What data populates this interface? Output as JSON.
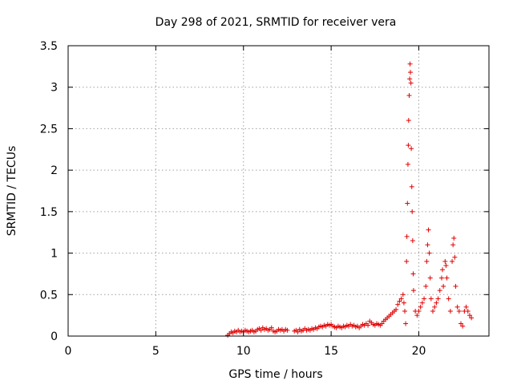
{
  "chart_data": {
    "type": "scatter",
    "title": "Day 298 of 2021, SRMTID for receiver vera",
    "xlabel": "GPS time / hours",
    "ylabel": "SRMTID / TECUs",
    "xlim": [
      0,
      24
    ],
    "ylim": [
      0,
      3.5
    ],
    "xticks": [
      "0",
      "5",
      "10",
      "15",
      "20"
    ],
    "yticks": [
      "0",
      "0.5",
      "1",
      "1.5",
      "2",
      "2.5",
      "3",
      "3.5"
    ],
    "grid": true,
    "marker": "plus",
    "series": [
      {
        "name": "SRMTID",
        "color": "#e00000",
        "points": [
          [
            9.1,
            0.01
          ],
          [
            9.2,
            0.03
          ],
          [
            9.3,
            0.05
          ],
          [
            9.4,
            0.04
          ],
          [
            9.5,
            0.06
          ],
          [
            9.6,
            0.05
          ],
          [
            9.7,
            0.07
          ],
          [
            9.8,
            0.05
          ],
          [
            9.9,
            0.06
          ],
          [
            10.0,
            0.05
          ],
          [
            10.1,
            0.07
          ],
          [
            10.2,
            0.06
          ],
          [
            10.3,
            0.05
          ],
          [
            10.4,
            0.06
          ],
          [
            10.5,
            0.07
          ],
          [
            10.6,
            0.05
          ],
          [
            10.7,
            0.06
          ],
          [
            10.8,
            0.08
          ],
          [
            10.9,
            0.09
          ],
          [
            11.0,
            0.07
          ],
          [
            11.1,
            0.1
          ],
          [
            11.2,
            0.08
          ],
          [
            11.3,
            0.09
          ],
          [
            11.4,
            0.07
          ],
          [
            11.5,
            0.08
          ],
          [
            11.6,
            0.1
          ],
          [
            11.7,
            0.06
          ],
          [
            11.8,
            0.05
          ],
          [
            11.9,
            0.06
          ],
          [
            12.0,
            0.08
          ],
          [
            12.1,
            0.07
          ],
          [
            12.2,
            0.08
          ],
          [
            12.3,
            0.06
          ],
          [
            12.4,
            0.08
          ],
          [
            12.5,
            0.07
          ],
          [
            12.9,
            0.06
          ],
          [
            13.0,
            0.07
          ],
          [
            13.1,
            0.05
          ],
          [
            13.2,
            0.08
          ],
          [
            13.3,
            0.06
          ],
          [
            13.4,
            0.07
          ],
          [
            13.5,
            0.09
          ],
          [
            13.6,
            0.07
          ],
          [
            13.7,
            0.08
          ],
          [
            13.8,
            0.07
          ],
          [
            13.9,
            0.09
          ],
          [
            14.0,
            0.08
          ],
          [
            14.1,
            0.1
          ],
          [
            14.2,
            0.09
          ],
          [
            14.3,
            0.11
          ],
          [
            14.4,
            0.12
          ],
          [
            14.5,
            0.11
          ],
          [
            14.6,
            0.13
          ],
          [
            14.7,
            0.12
          ],
          [
            14.8,
            0.14
          ],
          [
            14.9,
            0.13
          ],
          [
            15.0,
            0.14
          ],
          [
            15.1,
            0.12
          ],
          [
            15.2,
            0.11
          ],
          [
            15.3,
            0.1
          ],
          [
            15.4,
            0.12
          ],
          [
            15.5,
            0.11
          ],
          [
            15.6,
            0.1
          ],
          [
            15.7,
            0.12
          ],
          [
            15.8,
            0.11
          ],
          [
            15.9,
            0.13
          ],
          [
            16.0,
            0.12
          ],
          [
            16.1,
            0.14
          ],
          [
            16.2,
            0.12
          ],
          [
            16.3,
            0.13
          ],
          [
            16.4,
            0.11
          ],
          [
            16.5,
            0.12
          ],
          [
            16.6,
            0.1
          ],
          [
            16.7,
            0.12
          ],
          [
            16.8,
            0.14
          ],
          [
            16.9,
            0.13
          ],
          [
            17.0,
            0.15
          ],
          [
            17.1,
            0.13
          ],
          [
            17.2,
            0.18
          ],
          [
            17.3,
            0.16
          ],
          [
            17.4,
            0.14
          ],
          [
            17.5,
            0.13
          ],
          [
            17.6,
            0.15
          ],
          [
            17.7,
            0.14
          ],
          [
            17.8,
            0.13
          ],
          [
            17.9,
            0.15
          ],
          [
            18.0,
            0.18
          ],
          [
            18.1,
            0.2
          ],
          [
            18.2,
            0.22
          ],
          [
            18.3,
            0.24
          ],
          [
            18.4,
            0.26
          ],
          [
            18.5,
            0.28
          ],
          [
            18.6,
            0.3
          ],
          [
            18.7,
            0.32
          ],
          [
            18.8,
            0.38
          ],
          [
            18.9,
            0.42
          ],
          [
            19.0,
            0.45
          ],
          [
            19.1,
            0.5
          ],
          [
            19.15,
            0.4
          ],
          [
            19.2,
            0.3
          ],
          [
            19.25,
            0.15
          ],
          [
            19.3,
            0.9
          ],
          [
            19.32,
            1.2
          ],
          [
            19.35,
            1.6
          ],
          [
            19.38,
            2.07
          ],
          [
            19.4,
            2.3
          ],
          [
            19.42,
            2.6
          ],
          [
            19.45,
            2.9
          ],
          [
            19.48,
            3.1
          ],
          [
            19.5,
            3.28
          ],
          [
            19.52,
            3.18
          ],
          [
            19.55,
            3.05
          ],
          [
            19.57,
            2.26
          ],
          [
            19.6,
            1.8
          ],
          [
            19.62,
            1.5
          ],
          [
            19.65,
            1.15
          ],
          [
            19.68,
            0.75
          ],
          [
            19.7,
            0.55
          ],
          [
            19.8,
            0.3
          ],
          [
            19.9,
            0.25
          ],
          [
            20.0,
            0.3
          ],
          [
            20.1,
            0.35
          ],
          [
            20.2,
            0.4
          ],
          [
            20.3,
            0.45
          ],
          [
            20.4,
            0.6
          ],
          [
            20.45,
            0.9
          ],
          [
            20.5,
            1.1
          ],
          [
            20.55,
            1.28
          ],
          [
            20.6,
            1.0
          ],
          [
            20.65,
            0.7
          ],
          [
            20.7,
            0.45
          ],
          [
            20.8,
            0.3
          ],
          [
            20.9,
            0.35
          ],
          [
            21.0,
            0.4
          ],
          [
            21.1,
            0.45
          ],
          [
            21.2,
            0.55
          ],
          [
            21.3,
            0.7
          ],
          [
            21.35,
            0.8
          ],
          [
            21.4,
            0.6
          ],
          [
            21.5,
            0.9
          ],
          [
            21.55,
            0.85
          ],
          [
            21.6,
            0.7
          ],
          [
            21.7,
            0.45
          ],
          [
            21.8,
            0.3
          ],
          [
            21.9,
            0.9
          ],
          [
            21.95,
            1.1
          ],
          [
            22.0,
            1.18
          ],
          [
            22.05,
            0.95
          ],
          [
            22.1,
            0.6
          ],
          [
            22.2,
            0.35
          ],
          [
            22.3,
            0.3
          ],
          [
            22.4,
            0.15
          ],
          [
            22.5,
            0.12
          ],
          [
            22.6,
            0.3
          ],
          [
            22.7,
            0.35
          ],
          [
            22.8,
            0.3
          ],
          [
            22.9,
            0.25
          ],
          [
            23.0,
            0.22
          ]
        ]
      }
    ]
  }
}
